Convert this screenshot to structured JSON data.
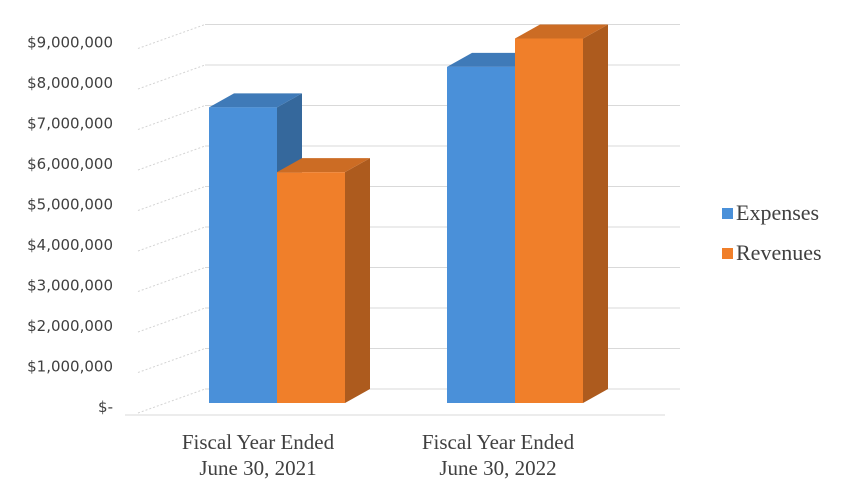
{
  "chart_data": {
    "type": "bar",
    "title": "",
    "xlabel": "",
    "ylabel": "",
    "categories": [
      [
        "Fiscal Year Ended",
        "June 30, 2021"
      ],
      [
        "Fiscal Year Ended",
        "June 30, 2022"
      ]
    ],
    "series": [
      {
        "name": "Expenses",
        "values": [
          7300000,
          8300000
        ],
        "color": "#4a90d9"
      },
      {
        "name": "Revenues",
        "values": [
          5700000,
          9000000
        ],
        "color": "#f07f2a"
      }
    ],
    "y_ticks": [
      {
        "value": 0,
        "label": "$-"
      },
      {
        "value": 1000000,
        "label": "$1,000,000"
      },
      {
        "value": 2000000,
        "label": "$2,000,000"
      },
      {
        "value": 3000000,
        "label": "$3,000,000"
      },
      {
        "value": 4000000,
        "label": "$4,000,000"
      },
      {
        "value": 5000000,
        "label": "$5,000,000"
      },
      {
        "value": 6000000,
        "label": "$6,000,000"
      },
      {
        "value": 7000000,
        "label": "$7,000,000"
      },
      {
        "value": 8000000,
        "label": "$8,000,000"
      },
      {
        "value": 9000000,
        "label": "$9,000,000"
      }
    ],
    "ylim": [
      0,
      9000000
    ],
    "grid": true,
    "legend_position": "right",
    "style": "3d-clustered-column"
  }
}
